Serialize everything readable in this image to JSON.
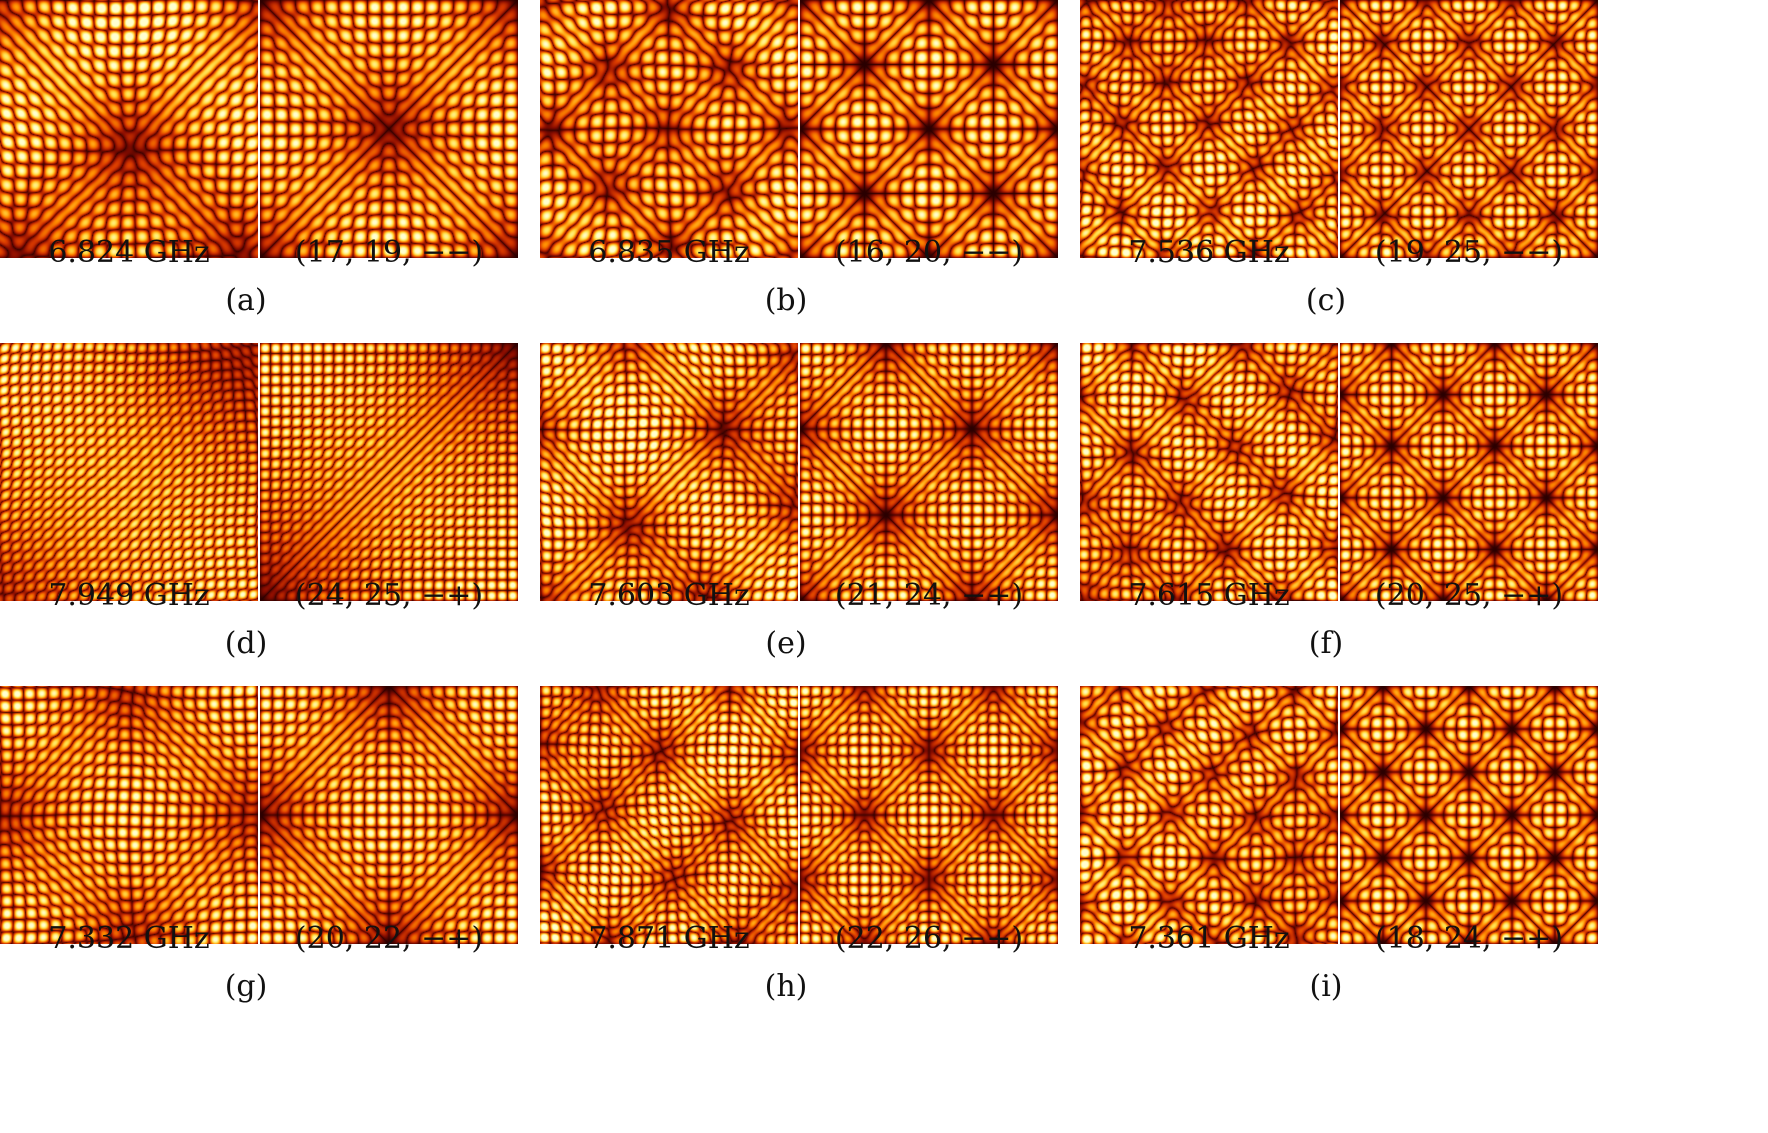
{
  "figure": {
    "panels": [
      {
        "tag": "(a)",
        "measured": {
          "label": "6.824 GHz"
        },
        "computed": {
          "label": "(17, 19, −−)"
        }
      },
      {
        "tag": "(b)",
        "measured": {
          "label": "6.835 GHz"
        },
        "computed": {
          "label": "(16, 20, −−)"
        }
      },
      {
        "tag": "(c)",
        "measured": {
          "label": "7.536 GHz"
        },
        "computed": {
          "label": "(19, 25, −−)"
        }
      },
      {
        "tag": "(d)",
        "measured": {
          "label": "7.949 GHz"
        },
        "computed": {
          "label": "(24, 25, −+)"
        }
      },
      {
        "tag": "(e)",
        "measured": {
          "label": "7.603 GHz"
        },
        "computed": {
          "label": "(21, 24, −+)"
        }
      },
      {
        "tag": "(f)",
        "measured": {
          "label": "7.615 GHz"
        },
        "computed": {
          "label": "(20, 25, −+)"
        }
      },
      {
        "tag": "(g)",
        "measured": {
          "label": "7.332 GHz"
        },
        "computed": {
          "label": "(20, 22, −+)"
        }
      },
      {
        "tag": "(h)",
        "measured": {
          "label": "7.871 GHz"
        },
        "computed": {
          "label": "(22, 26, −+)"
        }
      },
      {
        "tag": "(i)",
        "measured": {
          "label": "7.361 GHz"
        },
        "computed": {
          "label": "(18, 24, −+)"
        }
      }
    ],
    "colormap": [
      "#2a0000",
      "#8a0d00",
      "#d93a00",
      "#ff8c00",
      "#ffe04a",
      "#ffffd0"
    ]
  }
}
